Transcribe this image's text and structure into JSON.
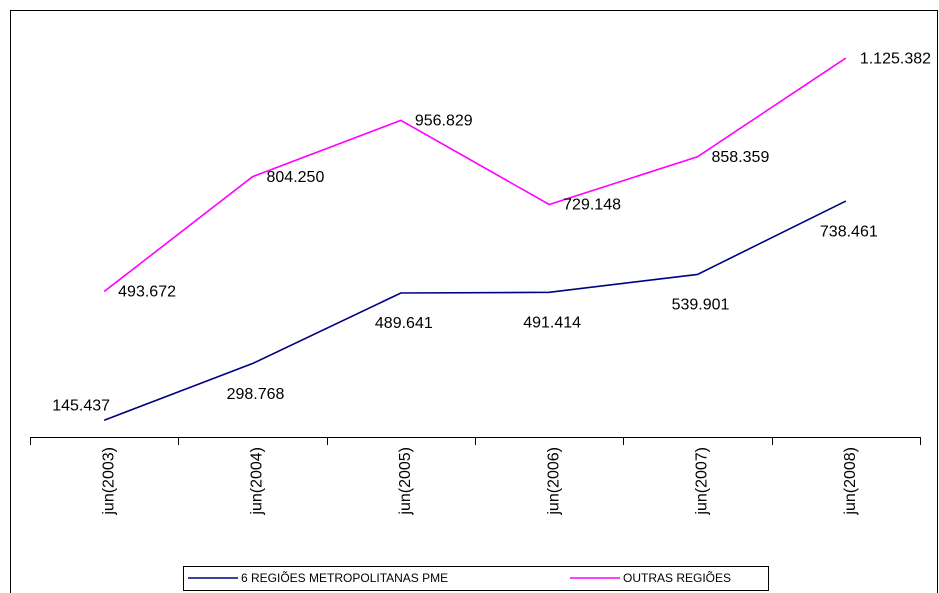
{
  "chart_data": {
    "type": "line",
    "categories": [
      "jun(2003)",
      "jun(2004)",
      "jun(2005)",
      "jun(2006)",
      "jun(2007)",
      "jun(2008)"
    ],
    "series": [
      {
        "name": "6 REGIÕES METROPOLITANAS PME",
        "color": "#000080",
        "values": [
          145437,
          298768,
          489641,
          491414,
          539901,
          738461
        ],
        "value_labels": [
          "145.437",
          "298.768",
          "489.641",
          "491.414",
          "539.901",
          "738.461"
        ]
      },
      {
        "name": "OUTRAS REGIÕES",
        "color": "#ff00ff",
        "values": [
          493672,
          804250,
          956829,
          729148,
          858359,
          1125382
        ],
        "value_labels": [
          "493.672",
          "804.250",
          "956.829",
          "729.148",
          "858.359",
          "1.125.382"
        ]
      }
    ],
    "ylim": [
      100000,
      1250000
    ],
    "legend": "bottom"
  }
}
